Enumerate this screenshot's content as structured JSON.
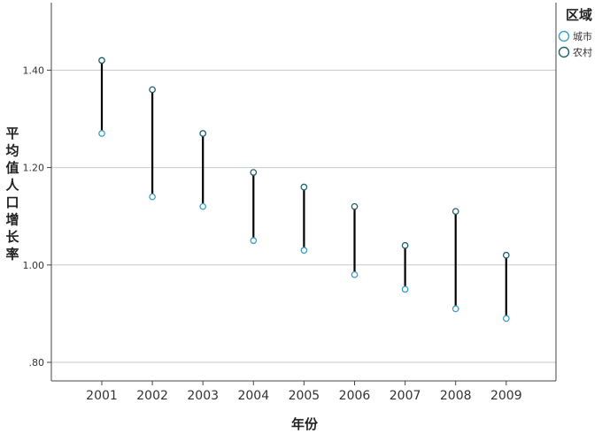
{
  "chart_data": {
    "type": "dumbbell",
    "title": "",
    "xlabel": "年份",
    "ylabel": "平均值人口增长率",
    "categories": [
      "2001",
      "2002",
      "2003",
      "2004",
      "2005",
      "2006",
      "2007",
      "2008",
      "2009"
    ],
    "ylim": [
      0.78,
      1.53
    ],
    "yticks": [
      0.8,
      1.0,
      1.2,
      1.4
    ],
    "ytick_labels": [
      ".80",
      "1.00",
      "1.20",
      "1.40"
    ],
    "grid": "horizontal",
    "legend": {
      "title": "区域",
      "placement": "top-right"
    },
    "series": [
      {
        "name": "城市",
        "color": "#3aa0c8",
        "values": [
          1.27,
          1.14,
          1.12,
          1.05,
          1.03,
          0.98,
          0.95,
          0.91,
          0.89
        ]
      },
      {
        "name": "农村",
        "color": "#1f5f6a",
        "values": [
          1.42,
          1.36,
          1.27,
          1.19,
          1.16,
          1.12,
          1.04,
          1.11,
          1.02
        ]
      }
    ],
    "connector_color": "#000000"
  }
}
